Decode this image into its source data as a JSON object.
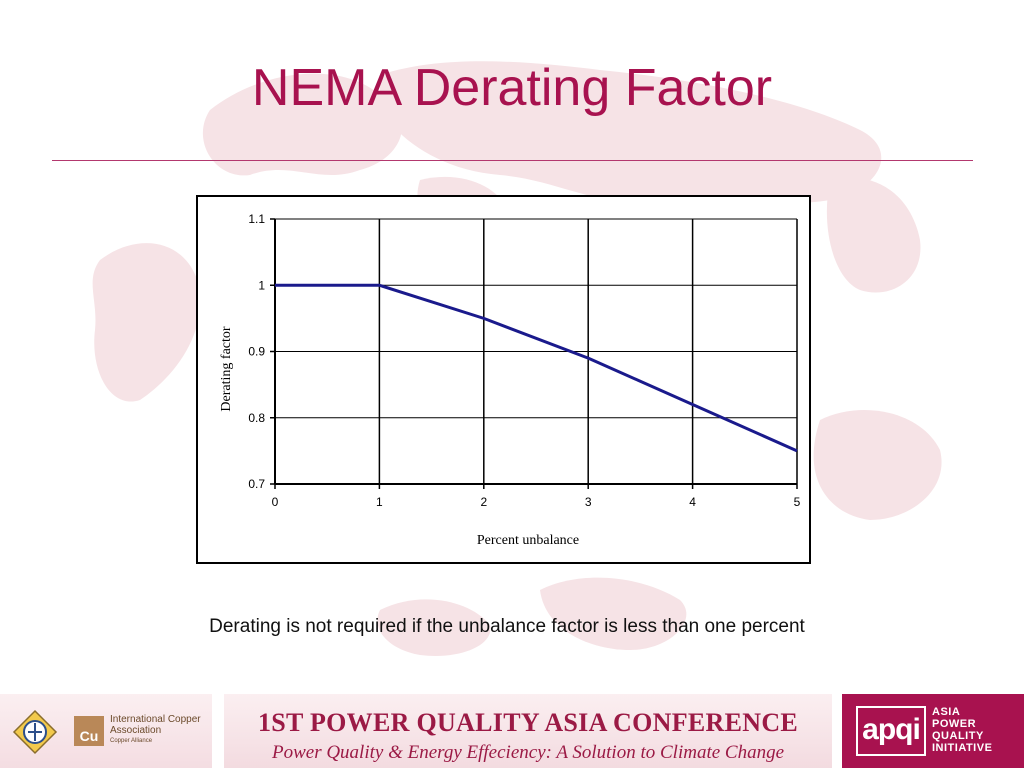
{
  "slide": {
    "title": "NEMA Derating Factor",
    "caption": "Derating is not required if the unbalance factor is less than one percent"
  },
  "chart_data": {
    "type": "line",
    "title": "",
    "xlabel": "Percent unbalance",
    "ylabel": "Derating factor",
    "xlim": [
      0,
      5
    ],
    "ylim": [
      0.7,
      1.1
    ],
    "x_ticks": [
      "0",
      "1",
      "2",
      "3",
      "4",
      "5"
    ],
    "y_ticks": [
      "0.7",
      "0.8",
      "0.9",
      "1",
      "1.1"
    ],
    "grid": true,
    "line_color": "#1a1a8c",
    "series": [
      {
        "x": [
          0,
          1,
          2,
          3,
          4,
          5
        ],
        "values": [
          1.0,
          1.0,
          0.95,
          0.89,
          0.82,
          0.75
        ]
      }
    ]
  },
  "footer": {
    "ica": {
      "name": "International Copper Association",
      "sub": "Copper Alliance",
      "symbol": "Cu"
    },
    "conference": {
      "title": "1ST POWER QUALITY ASIA CONFERENCE",
      "subtitle": "Power Quality & Energy Effeciency: A Solution to Climate Change"
    },
    "apqi": {
      "logo_text": "apqi",
      "line1": "ASIA",
      "line2": "POWER",
      "line3": "QUALITY",
      "line4": "INITIATIVE"
    }
  },
  "colors": {
    "accent": "#a8124f",
    "map": "#f6e3e6"
  }
}
